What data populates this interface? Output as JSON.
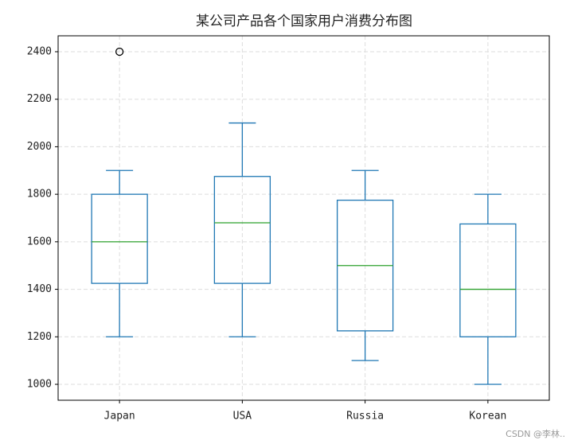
{
  "chart_data": {
    "type": "box",
    "title": "某公司产品各个国家用户消费分布图",
    "categories": [
      "Japan",
      "USA",
      "Russia",
      "Korean"
    ],
    "boxes": [
      {
        "whislo": 1200,
        "q1": 1425,
        "med": 1600,
        "q3": 1800,
        "whishi": 1900,
        "fliers": [
          2400
        ]
      },
      {
        "whislo": 1200,
        "q1": 1425,
        "med": 1680,
        "q3": 1875,
        "whishi": 2100,
        "fliers": []
      },
      {
        "whislo": 1100,
        "q1": 1225,
        "med": 1500,
        "q3": 1775,
        "whishi": 1900,
        "fliers": []
      },
      {
        "whislo": 1000,
        "q1": 1200,
        "med": 1400,
        "q3": 1675,
        "whishi": 1800,
        "fliers": []
      }
    ],
    "color": "#1f77b4",
    "median_color": "#2ca02c",
    "ylim": [
      933,
      2467
    ],
    "yticks": [
      1000,
      1200,
      1400,
      1600,
      1800,
      2000,
      2200,
      2400
    ],
    "grid": true
  },
  "watermark": "CSDN @李林.."
}
